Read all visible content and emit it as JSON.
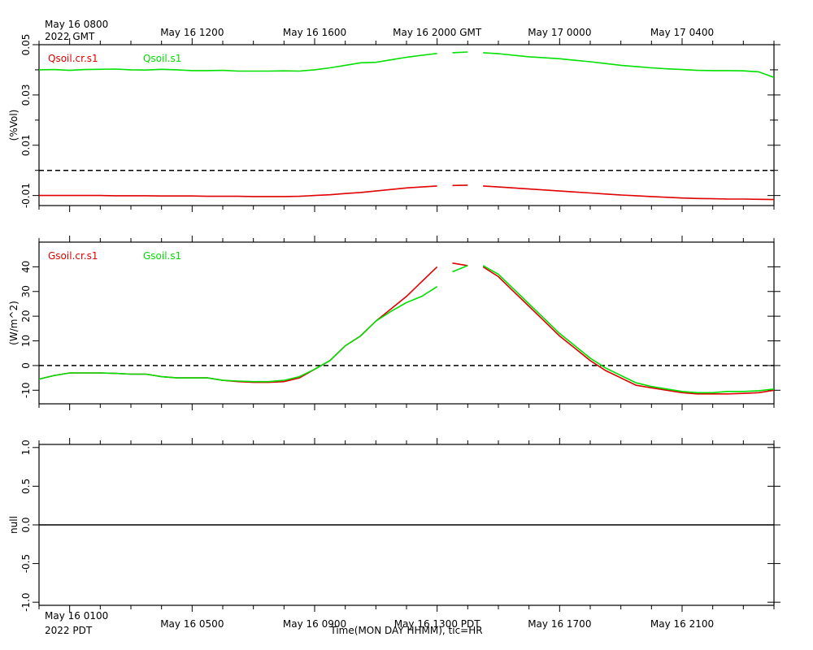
{
  "chart_data": [
    {
      "type": "line",
      "ylabel": "(%Vol)",
      "xlim": [
        0,
        24
      ],
      "ylim": [
        -0.014,
        0.05
      ],
      "x2ticks": [
        {
          "value": 1,
          "label": "May 16 0800"
        },
        {
          "value": 5,
          "label": "May 16 1200"
        },
        {
          "value": 9,
          "label": "May 16 1600"
        },
        {
          "value": 13,
          "label": "May 16 2000 GMT"
        },
        {
          "value": 17,
          "label": "May 17 0000"
        },
        {
          "value": 21,
          "label": "May 17 0400"
        }
      ],
      "x2_note": "2022 GMT",
      "xminorticks": [
        0,
        1,
        2,
        3,
        4,
        5,
        6,
        7,
        8,
        9,
        10,
        11,
        12,
        13,
        14,
        15,
        16,
        17,
        18,
        19,
        20,
        21,
        22,
        23,
        24
      ],
      "yticks": [
        0.05,
        0.03,
        0.01,
        -0.01
      ],
      "yminorticks": [
        0.04,
        0.02,
        0
      ],
      "hline": 0,
      "hline_style": "dashed",
      "x": [
        0,
        0.5,
        1,
        1.5,
        2,
        2.5,
        3,
        3.5,
        4,
        4.5,
        5,
        5.5,
        6,
        6.5,
        7,
        7.5,
        8,
        8.5,
        9,
        9.5,
        10,
        10.5,
        11,
        11.5,
        12,
        12.5,
        13,
        13.2,
        13.5,
        14,
        14.3,
        14.5,
        15,
        15.5,
        16,
        16.5,
        17,
        17.5,
        18,
        18.5,
        19,
        19.5,
        20,
        20.5,
        21,
        21.5,
        22,
        22.5,
        23,
        23.5,
        24
      ],
      "series": [
        {
          "name": "Qsoil.cr.s1",
          "color": "#e00000",
          "values": [
            -0.01,
            -0.01,
            -0.01,
            -0.01,
            -0.01,
            -0.0101,
            -0.0101,
            -0.0101,
            -0.0102,
            -0.0102,
            -0.0102,
            -0.0103,
            -0.0103,
            -0.0103,
            -0.0104,
            -0.0104,
            -0.0104,
            -0.0103,
            -0.01,
            -0.0097,
            -0.0092,
            -0.0088,
            -0.0082,
            -0.0076,
            -0.007,
            -0.0066,
            -0.0062,
            null,
            -0.006,
            -0.0059,
            null,
            -0.0062,
            -0.0066,
            -0.007,
            -0.0074,
            -0.0078,
            -0.0082,
            -0.0086,
            -0.009,
            -0.0094,
            -0.0098,
            -0.0101,
            -0.0104,
            -0.0107,
            -0.011,
            -0.0112,
            -0.0113,
            -0.0114,
            -0.0114,
            -0.0115,
            -0.0116
          ]
        },
        {
          "name": "Qsoil.s1",
          "color": "#00e000",
          "values": [
            0.04,
            0.0401,
            0.0398,
            0.0401,
            0.0402,
            0.0403,
            0.04,
            0.0399,
            0.0402,
            0.04,
            0.0397,
            0.0397,
            0.0398,
            0.0395,
            0.0395,
            0.0395,
            0.0396,
            0.0395,
            0.04,
            0.0408,
            0.0418,
            0.0428,
            0.043,
            0.044,
            0.045,
            0.0458,
            0.0465,
            null,
            0.0468,
            0.0471,
            null,
            0.0468,
            0.0464,
            0.0458,
            0.0452,
            0.0448,
            0.0444,
            0.0438,
            0.0432,
            0.0425,
            0.0418,
            0.0413,
            0.0408,
            0.0404,
            0.0401,
            0.0398,
            0.0397,
            0.0397,
            0.0396,
            0.0392,
            0.037
          ]
        }
      ]
    },
    {
      "type": "line",
      "ylabel": "(W/m^2)",
      "xlim": [
        0,
        24
      ],
      "ylim": [
        -15.5,
        50
      ],
      "yticks": [
        40,
        30,
        20,
        10,
        0,
        -10
      ],
      "hline": 0,
      "hline_style": "dashed",
      "x": [
        0,
        0.5,
        1,
        1.5,
        2,
        2.5,
        3,
        3.5,
        4,
        4.5,
        5,
        5.5,
        6,
        6.5,
        7,
        7.5,
        8,
        8.5,
        9,
        9.5,
        10,
        10.5,
        11,
        11.5,
        12,
        12.5,
        13,
        13.2,
        13.5,
        14,
        14.3,
        14.5,
        15,
        15.5,
        16,
        16.5,
        17,
        17.5,
        18,
        18.5,
        19,
        19.5,
        20,
        20.5,
        21,
        21.5,
        22,
        22.5,
        23,
        23.5,
        24
      ],
      "series": [
        {
          "name": "Gsoil.cr.s1",
          "color": "#e00000",
          "values": [
            -5.5,
            -4,
            -3,
            -3,
            -3,
            -3.2,
            -3.5,
            -3.5,
            -4.5,
            -5,
            -5,
            -5,
            -6,
            -6.5,
            -6.8,
            -6.8,
            -6.5,
            -5,
            -1.5,
            2,
            8,
            12,
            18,
            23,
            28,
            34,
            40,
            null,
            41.5,
            40.5,
            null,
            40,
            36,
            30,
            24,
            18,
            12,
            7,
            2,
            -2,
            -5,
            -8,
            -9,
            -10,
            -11,
            -11.5,
            -11.5,
            -11.5,
            -11.3,
            -11,
            -10
          ]
        },
        {
          "name": "Gsoil.s1",
          "color": "#00e000",
          "values": [
            -5.5,
            -4,
            -3,
            -3,
            -3,
            -3.2,
            -3.5,
            -3.5,
            -4.5,
            -5,
            -5,
            -5,
            -6,
            -6.3,
            -6.5,
            -6.5,
            -6,
            -4.5,
            -1.5,
            2,
            8,
            12,
            18,
            22,
            25.5,
            28,
            32,
            null,
            38,
            40.5,
            null,
            40.5,
            37,
            31,
            25,
            19,
            13,
            8,
            3,
            -1,
            -4,
            -7,
            -8.5,
            -9.5,
            -10.5,
            -11,
            -11,
            -10.5,
            -10.5,
            -10.2,
            -9.5
          ]
        }
      ]
    },
    {
      "type": "line",
      "ylabel": "null",
      "xlim": [
        0,
        24
      ],
      "ylim": [
        -1.04,
        1.04
      ],
      "yticks": [
        {
          "value": 1,
          "label": "1.0"
        },
        {
          "value": 0.5,
          "label": "0.5"
        },
        {
          "value": 0,
          "label": "0.0"
        },
        {
          "value": -0.5,
          "label": "-0.5"
        },
        {
          "value": -1,
          "label": "-1.0"
        }
      ],
      "hline": 0,
      "hline_style": "solid",
      "xticks": [
        {
          "value": 1,
          "label": "May 16 0100"
        },
        {
          "value": 5,
          "label": "May 16 0500"
        },
        {
          "value": 9,
          "label": "May 16 0900"
        },
        {
          "value": 13,
          "label": "May 16 1300 PDT"
        },
        {
          "value": 17,
          "label": "May 16 1700"
        },
        {
          "value": 21,
          "label": "May 16 2100"
        }
      ],
      "x_note": "2022 PDT",
      "xlabel": "Time(MON DAY HHMM), tic=HR",
      "x": [],
      "series": []
    }
  ]
}
